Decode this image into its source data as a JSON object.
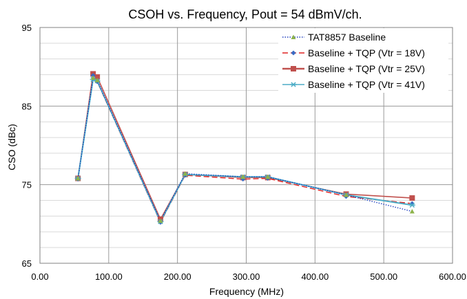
{
  "chart_data": {
    "type": "line",
    "title": "CSOH vs. Frequency, Pout = 54 dBmV/ch.",
    "xlabel": "Frequency (MHz)",
    "ylabel": "CSO (dBc)",
    "xlim": [
      0,
      600
    ],
    "ylim": [
      65,
      95
    ],
    "x_ticks": [
      0,
      100,
      200,
      300,
      400,
      500,
      600
    ],
    "x_tick_labels": [
      "0.00",
      "100.00",
      "200.00",
      "300.00",
      "400.00",
      "500.00",
      "600.00"
    ],
    "y_ticks": [
      65,
      75,
      85,
      95
    ],
    "y_tick_labels": [
      "65",
      "75",
      "85",
      "95"
    ],
    "grid": true,
    "legend_position": "top-right",
    "series": [
      {
        "name": "TAT8857 Baseline",
        "color": "#1f3fbf",
        "dash": "dotted",
        "marker": "triangle",
        "marker_color": "#8db34a",
        "x": [
          55.25,
          77.25,
          83.25,
          175.25,
          211.25,
          295.25,
          331.25,
          445.25,
          541.25
        ],
        "y": [
          75.8,
          88.6,
          88.3,
          70.4,
          76.4,
          76.0,
          76.0,
          73.7,
          71.6
        ]
      },
      {
        "name": "Baseline + TQP (Vtr = 18V)",
        "color": "#e02020",
        "dash": "dashed",
        "marker": "diamond",
        "marker_color": "#3a6ac2",
        "x": [
          55.25,
          77.25,
          83.25,
          175.25,
          211.25,
          295.25,
          331.25,
          445.25,
          541.25
        ],
        "y": [
          75.7,
          88.9,
          88.1,
          70.2,
          76.2,
          75.7,
          75.8,
          73.5,
          72.6
        ]
      },
      {
        "name": "Baseline + TQP (Vtr = 25V)",
        "color": "#c0504d",
        "dash": "solid",
        "marker": "square",
        "marker_color": "#c0504d",
        "x": [
          55.25,
          77.25,
          83.25,
          175.25,
          211.25,
          295.25,
          331.25,
          445.25,
          541.25
        ],
        "y": [
          75.8,
          89.1,
          88.7,
          70.6,
          76.3,
          75.9,
          75.9,
          73.8,
          73.3
        ]
      },
      {
        "name": "Baseline + TQP (Vtr = 41V)",
        "color": "#4bacc6",
        "dash": "solid",
        "marker": "asterisk",
        "marker_color": "#4bacc6",
        "x": [
          55.25,
          77.25,
          83.25,
          175.25,
          211.25,
          295.25,
          331.25,
          445.25,
          541.25
        ],
        "y": [
          75.8,
          88.4,
          88.2,
          70.3,
          76.3,
          76.0,
          76.0,
          73.7,
          72.4
        ]
      }
    ]
  }
}
